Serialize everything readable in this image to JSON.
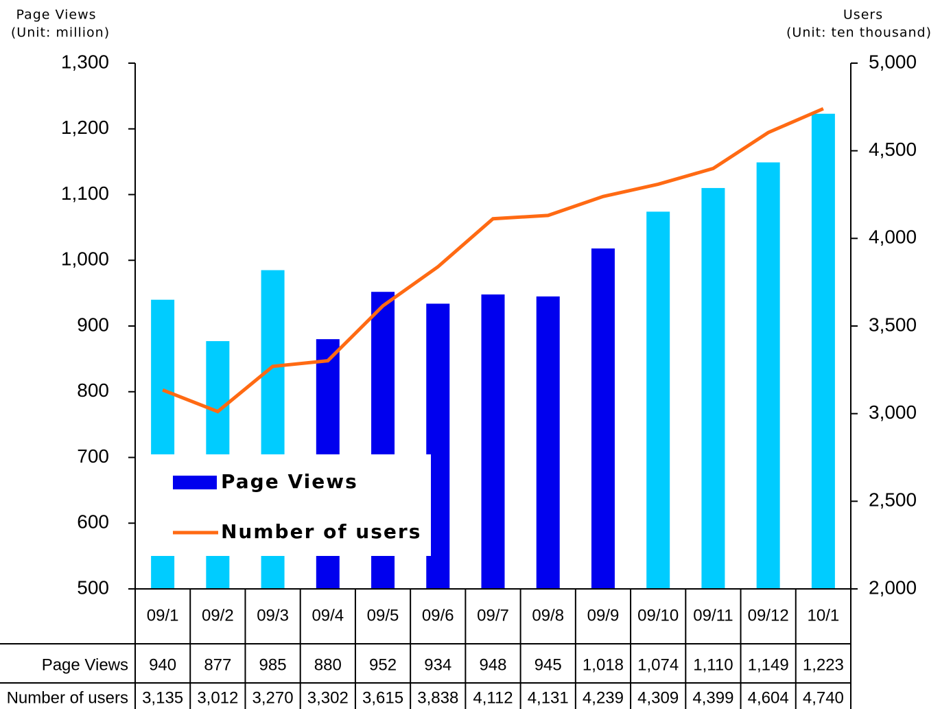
{
  "chart_data": {
    "type": "bar",
    "ylabel": "Page Views",
    "yunit": "(Unit: million)",
    "y2label": "Users",
    "y2unit": "(Unit: ten thousand)",
    "categories": [
      "09/1",
      "09/2",
      "09/3",
      "09/4",
      "09/5",
      "09/6",
      "09/7",
      "09/8",
      "09/9",
      "09/10",
      "09/11",
      "09/12",
      "10/1"
    ],
    "series": [
      {
        "name": "Page Views",
        "type": "bar",
        "color": "#0000ee",
        "colors": [
          "#00ccff",
          "#00ccff",
          "#00ccff",
          "#0000ee",
          "#0000ee",
          "#0000ee",
          "#0000ee",
          "#0000ee",
          "#0000ee",
          "#00ccff",
          "#00ccff",
          "#00ccff",
          "#00ccff"
        ],
        "values": [
          940,
          877,
          985,
          880,
          952,
          934,
          948,
          945,
          1018,
          1074,
          1110,
          1149,
          1223
        ],
        "value_labels": [
          "940",
          "877",
          "985",
          "880",
          "952",
          "934",
          "948",
          "945",
          "1,018",
          "1,074",
          "1,110",
          "1,149",
          "1,223"
        ]
      },
      {
        "name": "Number of users",
        "type": "line",
        "axis": "y2",
        "color": "#ff6a13",
        "values": [
          3135,
          3012,
          3270,
          3302,
          3615,
          3838,
          4112,
          4131,
          4239,
          4309,
          4399,
          4604,
          4740
        ],
        "value_labels": [
          "3,135",
          "3,012",
          "3,270",
          "3,302",
          "3,615",
          "3,838",
          "4,112",
          "4,131",
          "4,239",
          "4,309",
          "4,399",
          "4,604",
          "4,740"
        ]
      }
    ],
    "ylim": [
      500,
      1300
    ],
    "yticks": [
      500,
      600,
      700,
      800,
      900,
      {
        "value": 1000,
        "label": "1,000"
      },
      {
        "value": 1100,
        "label": "1,100"
      },
      {
        "value": 1200,
        "label": "1,200"
      },
      {
        "value": 1300,
        "label": "1,300"
      }
    ],
    "y2lim": [
      2000,
      5000
    ],
    "y2ticks": [
      {
        "value": 2000,
        "label": "2,000"
      },
      {
        "value": 2500,
        "label": "2,500"
      },
      {
        "value": 3000,
        "label": "3,000"
      },
      {
        "value": 3500,
        "label": "3,500"
      },
      {
        "value": 4000,
        "label": "4,000"
      },
      {
        "value": 4500,
        "label": "4,500"
      },
      {
        "value": 5000,
        "label": "5,000"
      }
    ],
    "grid": false,
    "legend": "lower left"
  }
}
